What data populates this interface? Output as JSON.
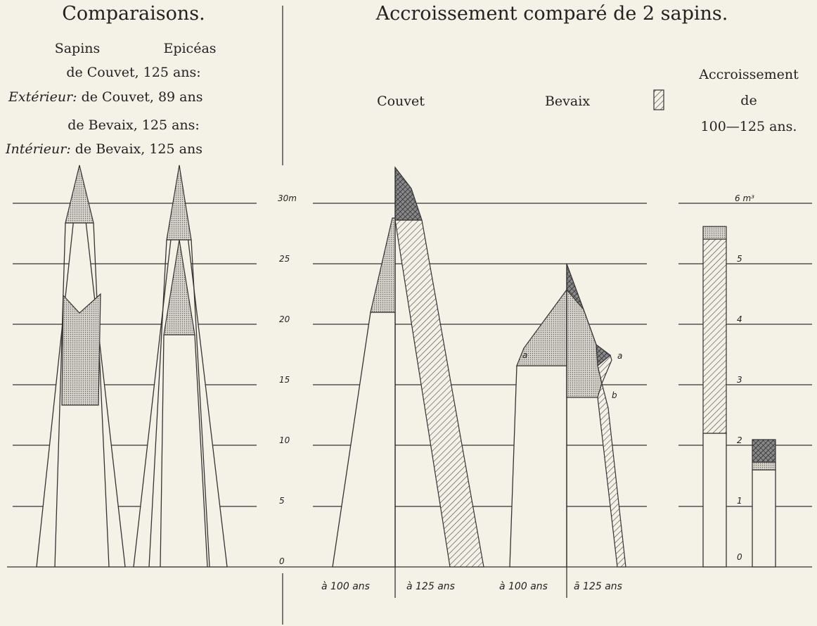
{
  "header": {
    "left_title": "Comparaisons.",
    "right_title": "Accroissement comparé de 2 sapins."
  },
  "legend_left": {
    "col1": "Sapins",
    "col2": "Epicéas",
    "row1a": "de Couvet, 125 ans:",
    "row1b_label": "Extérieur:",
    "row1b": "de Couvet, 89 ans",
    "row2a": "de Bevaix, 125 ans:",
    "row2b_label": "Intérieur:",
    "row2b": "de Bevaix, 125 ans"
  },
  "tree_labels": [
    "Couvet",
    "Bevaix"
  ],
  "legend_right": [
    "Accroissement",
    "de",
    "100—125 ans."
  ],
  "height_axis": {
    "ticks": [
      "30m",
      "25",
      "20",
      "15",
      "10",
      "5",
      "0"
    ]
  },
  "volume_axis": {
    "ticks": [
      "6 m³",
      "5",
      "4",
      "3",
      "2",
      "1",
      "0"
    ]
  },
  "age_labels": [
    "à 100 ans",
    "à 125 ans",
    "à 100 ans",
    "ā 125 ans"
  ],
  "point_labels": [
    "a",
    "a",
    "b"
  ]
}
